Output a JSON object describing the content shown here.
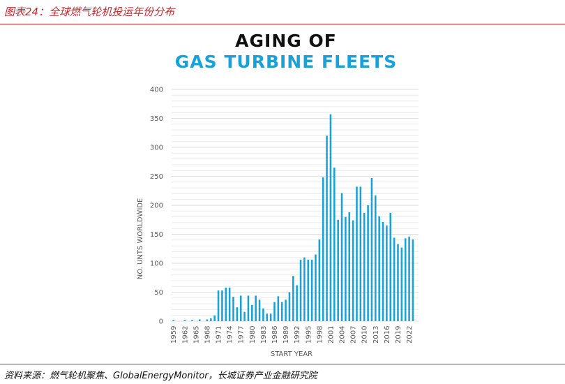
{
  "caption": "图表24：全球燃气轮机投运年份分布",
  "source": "资料来源：燃气轮机聚焦、GlobalEnergyMonitor，长城证券产业金融研究院",
  "colors": {
    "accent": "#c0272d",
    "bar": "#1aa2d8",
    "title": "#111111",
    "subtitle": "#1aa2d8"
  },
  "chart_data": {
    "type": "bar",
    "title": "AGING OF",
    "subtitle": "GAS TURBINE FLEETS",
    "xlabel": "START YEAR",
    "ylabel": "NO. UNTS WORLDWIDE",
    "ylim": [
      0,
      400
    ],
    "yticks": [
      0,
      50,
      100,
      150,
      200,
      250,
      300,
      350,
      400
    ],
    "grid": true,
    "x_tick_labels": [
      "1959",
      "1962",
      "1965",
      "1968",
      "1971",
      "1974",
      "1977",
      "1980",
      "1983",
      "1986",
      "1989",
      "1992",
      "1995",
      "1998",
      "2001",
      "2004",
      "2007",
      "2010",
      "2013",
      "2016",
      "2019",
      "2022"
    ],
    "categories": [
      "1959",
      "1960",
      "1961",
      "1962",
      "1963",
      "1964",
      "1965",
      "1966",
      "1967",
      "1968",
      "1969",
      "1970",
      "1971",
      "1972",
      "1973",
      "1974",
      "1975",
      "1976",
      "1977",
      "1978",
      "1979",
      "1980",
      "1981",
      "1982",
      "1983",
      "1984",
      "1985",
      "1986",
      "1987",
      "1988",
      "1989",
      "1990",
      "1991",
      "1992",
      "1993",
      "1994",
      "1995",
      "1996",
      "1997",
      "1998",
      "1999",
      "2000",
      "2001",
      "2002",
      "2003",
      "2004",
      "2005",
      "2006",
      "2007",
      "2008",
      "2009",
      "2010",
      "2011",
      "2012",
      "2013",
      "2014",
      "2015",
      "2016",
      "2017",
      "2018",
      "2019",
      "2020",
      "2021",
      "2022",
      "2023",
      "2024"
    ],
    "values": [
      2,
      0,
      0,
      2,
      0,
      2,
      0,
      3,
      0,
      3,
      5,
      10,
      53,
      53,
      58,
      58,
      42,
      24,
      44,
      16,
      44,
      28,
      44,
      37,
      22,
      13,
      13,
      33,
      43,
      33,
      37,
      50,
      78,
      62,
      106,
      110,
      106,
      106,
      115,
      141,
      248,
      320,
      357,
      265,
      175,
      221,
      180,
      188,
      174,
      232,
      232,
      187,
      200,
      247,
      217,
      181,
      171,
      165,
      187,
      144,
      133,
      127,
      143,
      146,
      141,
      0
    ]
  }
}
